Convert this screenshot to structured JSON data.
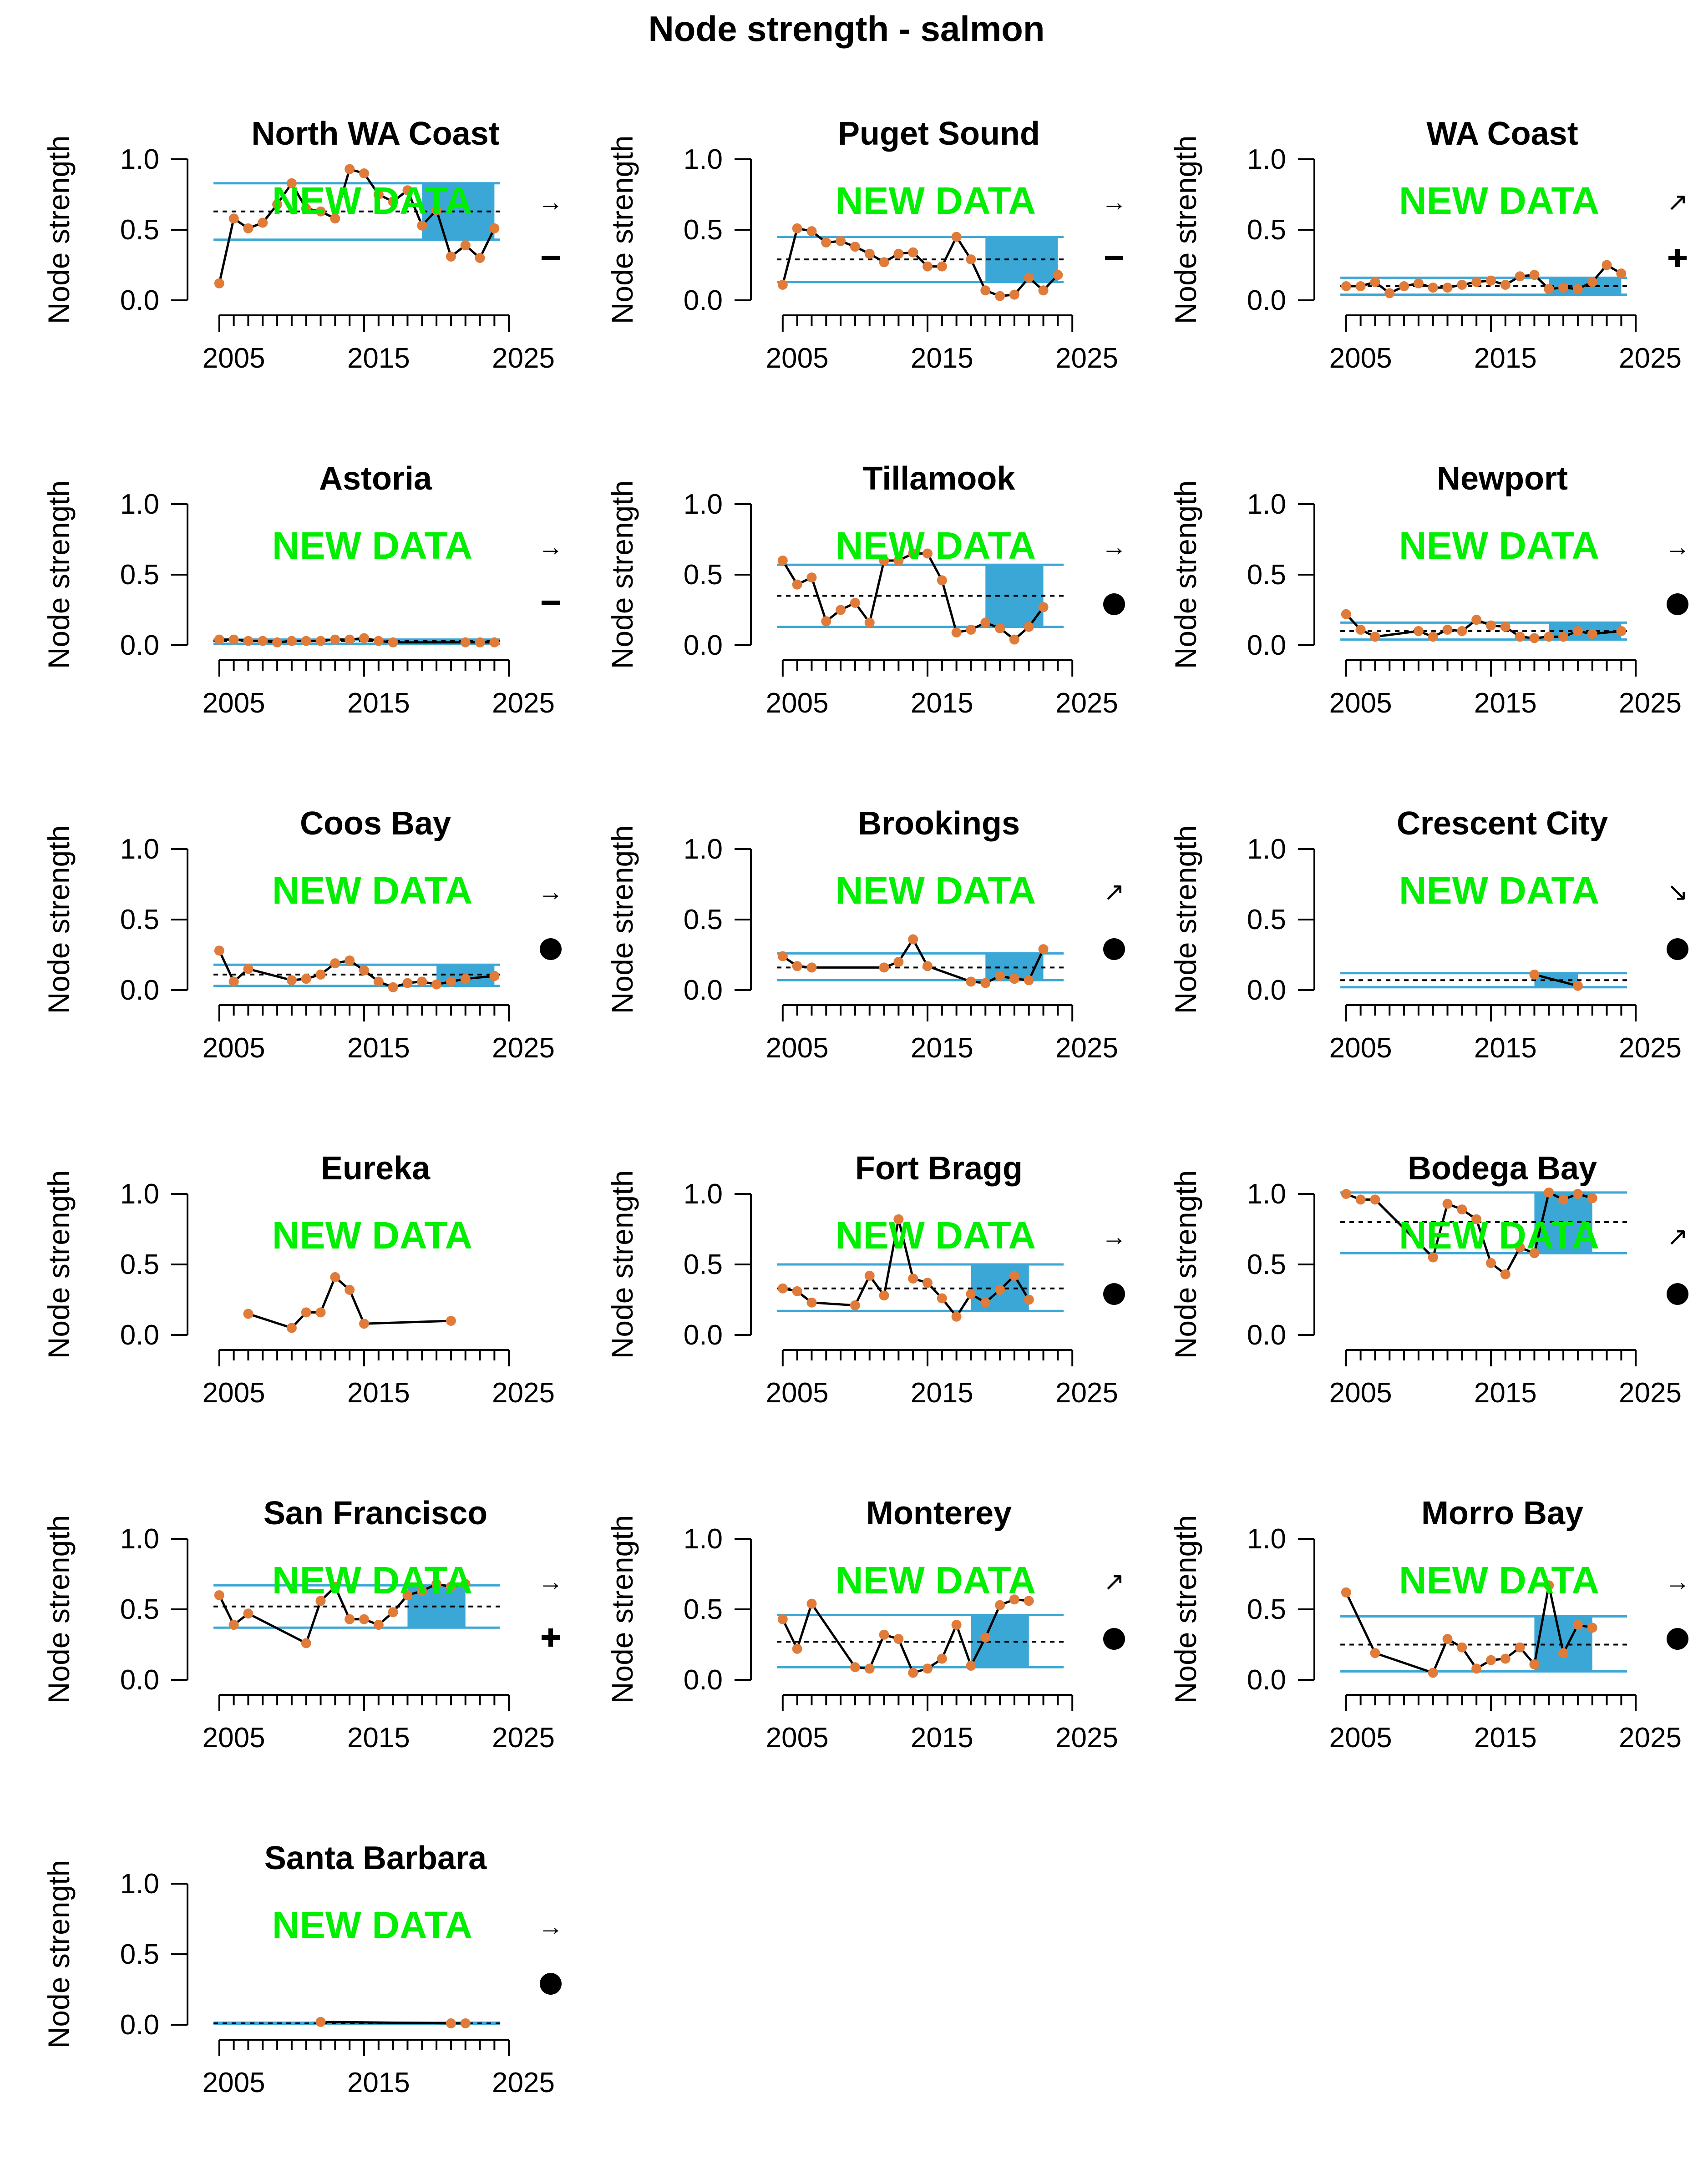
{
  "figure": {
    "title": "Node strength - salmon",
    "overlay_text": "NEW DATA",
    "overlay_color": "#00ee00",
    "series_color": "#000000",
    "point_color": "#e07b39",
    "band_color": "#3ba7d6",
    "band_line_color": "#3ba7d6"
  },
  "chart_data": [
    {
      "type": "line",
      "title": "North WA Coast",
      "ylabel": "Node strength",
      "xlim": [
        2003,
        2025
      ],
      "ylim": [
        0,
        1
      ],
      "xticks": [
        2005,
        2015,
        2025
      ],
      "yticks": [
        "0.0",
        "0.5",
        "1.0"
      ],
      "mean": 0.63,
      "sd_upper": 0.83,
      "sd_lower": 0.43,
      "recent_window": [
        2018,
        2023
      ],
      "trend_symbol": "→",
      "status_symbol": "–",
      "status": "neutral",
      "x": [
        2004,
        2005,
        2006,
        2007,
        2008,
        2009,
        2010,
        2011,
        2012,
        2013,
        2014,
        2015,
        2016,
        2017,
        2018,
        2019,
        2020,
        2021,
        2022,
        2023
      ],
      "y": [
        0.12,
        0.58,
        0.51,
        0.55,
        0.68,
        0.83,
        0.65,
        0.63,
        0.58,
        0.93,
        0.9,
        0.75,
        0.7,
        0.78,
        0.53,
        0.64,
        0.31,
        0.39,
        0.3,
        0.51
      ]
    },
    {
      "type": "line",
      "title": "Puget Sound",
      "ylabel": "Node strength",
      "xlim": [
        2003,
        2025
      ],
      "ylim": [
        0,
        1
      ],
      "xticks": [
        2005,
        2015,
        2025
      ],
      "yticks": [
        "0.0",
        "0.5",
        "1.0"
      ],
      "mean": 0.29,
      "sd_upper": 0.45,
      "sd_lower": 0.13,
      "recent_window": [
        2018,
        2023
      ],
      "trend_symbol": "→",
      "status_symbol": "–",
      "status": "neutral",
      "x": [
        2004,
        2005,
        2006,
        2007,
        2008,
        2009,
        2010,
        2011,
        2012,
        2013,
        2014,
        2015,
        2016,
        2017,
        2018,
        2019,
        2020,
        2021,
        2022,
        2023
      ],
      "y": [
        0.11,
        0.51,
        0.49,
        0.41,
        0.42,
        0.38,
        0.33,
        0.27,
        0.33,
        0.34,
        0.24,
        0.24,
        0.45,
        0.29,
        0.07,
        0.03,
        0.04,
        0.16,
        0.07,
        0.18
      ]
    },
    {
      "type": "line",
      "title": "WA Coast",
      "ylabel": "Node strength",
      "xlim": [
        2003,
        2025
      ],
      "ylim": [
        0,
        1
      ],
      "xticks": [
        2005,
        2015,
        2025
      ],
      "yticks": [
        "0.0",
        "0.5",
        "1.0"
      ],
      "mean": 0.1,
      "sd_upper": 0.16,
      "sd_lower": 0.04,
      "recent_window": [
        2018,
        2023
      ],
      "trend_symbol": "↗",
      "status_symbol": "+",
      "status": "above",
      "x": [
        2004,
        2005,
        2006,
        2007,
        2008,
        2009,
        2010,
        2011,
        2012,
        2013,
        2014,
        2015,
        2016,
        2017,
        2018,
        2019,
        2020,
        2021,
        2022,
        2023
      ],
      "y": [
        0.1,
        0.1,
        0.13,
        0.05,
        0.1,
        0.12,
        0.09,
        0.09,
        0.11,
        0.13,
        0.14,
        0.11,
        0.17,
        0.18,
        0.08,
        0.09,
        0.08,
        0.13,
        0.25,
        0.19
      ]
    },
    {
      "type": "line",
      "title": "Astoria",
      "ylabel": "Node strength",
      "xlim": [
        2003,
        2025
      ],
      "ylim": [
        0,
        1
      ],
      "xticks": [
        2005,
        2015,
        2025
      ],
      "yticks": [
        "0.0",
        "0.5",
        "1.0"
      ],
      "mean": 0.03,
      "sd_upper": 0.04,
      "sd_lower": 0.01,
      "recent_window": [
        2018,
        2023
      ],
      "trend_symbol": "→",
      "status_symbol": "–",
      "status": "neutral",
      "x": [
        2004,
        2005,
        2006,
        2007,
        2008,
        2009,
        2010,
        2011,
        2012,
        2013,
        2014,
        2015,
        2016,
        2021,
        2022,
        2023
      ],
      "y": [
        0.04,
        0.04,
        0.03,
        0.03,
        0.02,
        0.03,
        0.03,
        0.03,
        0.04,
        0.04,
        0.05,
        0.03,
        0.02,
        0.02,
        0.02,
        0.02
      ]
    },
    {
      "type": "line",
      "title": "Tillamook",
      "ylabel": "Node strength",
      "xlim": [
        2003,
        2025
      ],
      "ylim": [
        0,
        1
      ],
      "xticks": [
        2005,
        2015,
        2025
      ],
      "yticks": [
        "0.0",
        "0.5",
        "1.0"
      ],
      "mean": 0.35,
      "sd_upper": 0.57,
      "sd_lower": 0.13,
      "recent_window": [
        2018,
        2022
      ],
      "trend_symbol": "→",
      "status_symbol": "●",
      "status": "within",
      "x": [
        2004,
        2005,
        2006,
        2007,
        2008,
        2009,
        2010,
        2011,
        2012,
        2013,
        2014,
        2015,
        2016,
        2017,
        2018,
        2019,
        2020,
        2021,
        2022
      ],
      "y": [
        0.6,
        0.43,
        0.48,
        0.17,
        0.25,
        0.3,
        0.16,
        0.6,
        0.6,
        0.65,
        0.65,
        0.46,
        0.09,
        0.11,
        0.16,
        0.12,
        0.04,
        0.13,
        0.27
      ]
    },
    {
      "type": "line",
      "title": "Newport",
      "ylabel": "Node strength",
      "xlim": [
        2003,
        2025
      ],
      "ylim": [
        0,
        1
      ],
      "xticks": [
        2005,
        2015,
        2025
      ],
      "yticks": [
        "0.0",
        "0.5",
        "1.0"
      ],
      "mean": 0.1,
      "sd_upper": 0.16,
      "sd_lower": 0.04,
      "recent_window": [
        2018,
        2023
      ],
      "trend_symbol": "→",
      "status_symbol": "●",
      "status": "within",
      "x": [
        2004,
        2005,
        2006,
        2009,
        2010,
        2011,
        2012,
        2013,
        2014,
        2015,
        2016,
        2017,
        2018,
        2019,
        2020,
        2021,
        2023
      ],
      "y": [
        0.22,
        0.11,
        0.06,
        0.1,
        0.06,
        0.11,
        0.1,
        0.18,
        0.14,
        0.13,
        0.06,
        0.05,
        0.06,
        0.06,
        0.1,
        0.08,
        0.1
      ]
    },
    {
      "type": "line",
      "title": "Coos Bay",
      "ylabel": "Node strength",
      "xlim": [
        2003,
        2025
      ],
      "ylim": [
        0,
        1
      ],
      "xticks": [
        2005,
        2015,
        2025
      ],
      "yticks": [
        "0.0",
        "0.5",
        "1.0"
      ],
      "mean": 0.11,
      "sd_upper": 0.18,
      "sd_lower": 0.03,
      "recent_window": [
        2019,
        2023
      ],
      "trend_symbol": "→",
      "status_symbol": "●",
      "status": "within",
      "x": [
        2004,
        2005,
        2006,
        2009,
        2010,
        2011,
        2012,
        2013,
        2014,
        2015,
        2016,
        2017,
        2018,
        2019,
        2020,
        2021,
        2023
      ],
      "y": [
        0.28,
        0.06,
        0.15,
        0.07,
        0.08,
        0.11,
        0.19,
        0.21,
        0.14,
        0.06,
        0.02,
        0.05,
        0.06,
        0.04,
        0.06,
        0.08,
        0.1
      ]
    },
    {
      "type": "line",
      "title": "Brookings",
      "ylabel": "Node strength",
      "xlim": [
        2003,
        2025
      ],
      "ylim": [
        0,
        1
      ],
      "xticks": [
        2005,
        2015,
        2025
      ],
      "yticks": [
        "0.0",
        "0.5",
        "1.0"
      ],
      "mean": 0.16,
      "sd_upper": 0.26,
      "sd_lower": 0.07,
      "recent_window": [
        2018,
        2022
      ],
      "trend_symbol": "↗",
      "status_symbol": "●",
      "status": "within",
      "x": [
        2004,
        2005,
        2006,
        2011,
        2012,
        2013,
        2014,
        2017,
        2018,
        2019,
        2020,
        2021,
        2022
      ],
      "y": [
        0.24,
        0.17,
        0.16,
        0.16,
        0.2,
        0.36,
        0.17,
        0.06,
        0.05,
        0.1,
        0.08,
        0.07,
        0.29
      ]
    },
    {
      "type": "line",
      "title": "Crescent City",
      "ylabel": "Node strength",
      "xlim": [
        2003,
        2025
      ],
      "ylim": [
        0,
        1
      ],
      "xticks": [
        2005,
        2015,
        2025
      ],
      "yticks": [
        "0.0",
        "0.5",
        "1.0"
      ],
      "mean": 0.07,
      "sd_upper": 0.12,
      "sd_lower": 0.02,
      "recent_window": [
        2017,
        2020
      ],
      "trend_symbol": "↘",
      "status_symbol": "●",
      "status": "within",
      "x": [
        2017,
        2020
      ],
      "y": [
        0.11,
        0.03
      ]
    },
    {
      "type": "line",
      "title": "Eureka",
      "ylabel": "Node strength",
      "xlim": [
        2003,
        2025
      ],
      "ylim": [
        0,
        1
      ],
      "xticks": [
        2005,
        2015,
        2025
      ],
      "yticks": [
        "0.0",
        "0.5",
        "1.0"
      ],
      "mean": null,
      "sd_upper": null,
      "sd_lower": null,
      "recent_window": null,
      "trend_symbol": "",
      "status_symbol": "",
      "status": "insufficient",
      "x": [
        2006,
        2009,
        2010,
        2011,
        2012,
        2013,
        2014,
        2020
      ],
      "y": [
        0.15,
        0.05,
        0.16,
        0.16,
        0.41,
        0.32,
        0.08,
        0.1
      ]
    },
    {
      "type": "line",
      "title": "Fort Bragg",
      "ylabel": "Node strength",
      "xlim": [
        2003,
        2025
      ],
      "ylim": [
        0,
        1
      ],
      "xticks": [
        2005,
        2015,
        2025
      ],
      "yticks": [
        "0.0",
        "0.5",
        "1.0"
      ],
      "mean": 0.33,
      "sd_upper": 0.5,
      "sd_lower": 0.17,
      "recent_window": [
        2017,
        2021
      ],
      "trend_symbol": "→",
      "status_symbol": "●",
      "status": "within",
      "x": [
        2004,
        2005,
        2006,
        2009,
        2010,
        2011,
        2012,
        2013,
        2014,
        2015,
        2016,
        2017,
        2018,
        2019,
        2020,
        2021
      ],
      "y": [
        0.33,
        0.31,
        0.23,
        0.21,
        0.42,
        0.28,
        0.82,
        0.4,
        0.37,
        0.26,
        0.13,
        0.29,
        0.23,
        0.32,
        0.42,
        0.25
      ]
    },
    {
      "type": "line",
      "title": "Bodega Bay",
      "ylabel": "Node strength",
      "xlim": [
        2003,
        2025
      ],
      "ylim": [
        0,
        1
      ],
      "xticks": [
        2005,
        2015,
        2025
      ],
      "yticks": [
        "0.0",
        "0.5",
        "1.0"
      ],
      "mean": 0.8,
      "sd_upper": 1.01,
      "sd_lower": 0.58,
      "recent_window": [
        2017,
        2021
      ],
      "trend_symbol": "↗",
      "status_symbol": "●",
      "status": "within",
      "x": [
        2004,
        2005,
        2006,
        2010,
        2011,
        2012,
        2013,
        2014,
        2015,
        2016,
        2017,
        2018,
        2019,
        2020,
        2021
      ],
      "y": [
        1.0,
        0.96,
        0.96,
        0.55,
        0.93,
        0.89,
        0.82,
        0.51,
        0.43,
        0.62,
        0.58,
        1.01,
        0.96,
        1.0,
        0.97
      ]
    },
    {
      "type": "line",
      "title": "San Francisco",
      "ylabel": "Node strength",
      "xlim": [
        2003,
        2025
      ],
      "ylim": [
        0,
        1
      ],
      "xticks": [
        2005,
        2015,
        2025
      ],
      "yticks": [
        "0.0",
        "0.5",
        "1.0"
      ],
      "mean": 0.52,
      "sd_upper": 0.67,
      "sd_lower": 0.37,
      "recent_window": [
        2017,
        2021
      ],
      "trend_symbol": "→",
      "status_symbol": "+",
      "status": "above",
      "x": [
        2004,
        2005,
        2006,
        2010,
        2011,
        2012,
        2013,
        2014,
        2015,
        2016,
        2017,
        2018,
        2019,
        2020,
        2021
      ],
      "y": [
        0.6,
        0.39,
        0.47,
        0.26,
        0.56,
        0.66,
        0.43,
        0.43,
        0.39,
        0.48,
        0.6,
        0.63,
        0.68,
        0.66,
        0.68
      ]
    },
    {
      "type": "line",
      "title": "Monterey",
      "ylabel": "Node strength",
      "xlim": [
        2003,
        2025
      ],
      "ylim": [
        0,
        1
      ],
      "xticks": [
        2005,
        2015,
        2025
      ],
      "yticks": [
        "0.0",
        "0.5",
        "1.0"
      ],
      "mean": 0.27,
      "sd_upper": 0.46,
      "sd_lower": 0.09,
      "recent_window": [
        2017,
        2021
      ],
      "trend_symbol": "↗",
      "status_symbol": "●",
      "status": "within",
      "x": [
        2004,
        2005,
        2006,
        2009,
        2010,
        2011,
        2012,
        2013,
        2014,
        2015,
        2016,
        2017,
        2018,
        2019,
        2020,
        2021
      ],
      "y": [
        0.43,
        0.22,
        0.54,
        0.09,
        0.08,
        0.32,
        0.29,
        0.05,
        0.08,
        0.15,
        0.39,
        0.1,
        0.3,
        0.53,
        0.57,
        0.56
      ]
    },
    {
      "type": "line",
      "title": "Morro Bay",
      "ylabel": "Node strength",
      "xlim": [
        2003,
        2025
      ],
      "ylim": [
        0,
        1
      ],
      "xticks": [
        2005,
        2015,
        2025
      ],
      "yticks": [
        "0.0",
        "0.5",
        "1.0"
      ],
      "mean": 0.25,
      "sd_upper": 0.45,
      "sd_lower": 0.06,
      "recent_window": [
        2017,
        2021
      ],
      "trend_symbol": "→",
      "status_symbol": "●",
      "status": "within",
      "x": [
        2004,
        2006,
        2010,
        2011,
        2012,
        2013,
        2014,
        2015,
        2016,
        2017,
        2018,
        2019,
        2020,
        2021
      ],
      "y": [
        0.62,
        0.19,
        0.05,
        0.29,
        0.23,
        0.08,
        0.14,
        0.15,
        0.23,
        0.11,
        0.67,
        0.19,
        0.39,
        0.37
      ]
    },
    {
      "type": "line",
      "title": "Santa Barbara",
      "ylabel": "Node strength",
      "xlim": [
        2003,
        2025
      ],
      "ylim": [
        0,
        1
      ],
      "xticks": [
        2005,
        2015,
        2025
      ],
      "yticks": [
        "0.0",
        "0.5",
        "1.0"
      ],
      "mean": 0.01,
      "sd_upper": 0.015,
      "sd_lower": 0.005,
      "recent_window": [
        2017,
        2021
      ],
      "trend_symbol": "→",
      "status_symbol": "●",
      "status": "within",
      "x": [
        2011,
        2020,
        2021
      ],
      "y": [
        0.02,
        0.01,
        0.01
      ]
    }
  ]
}
